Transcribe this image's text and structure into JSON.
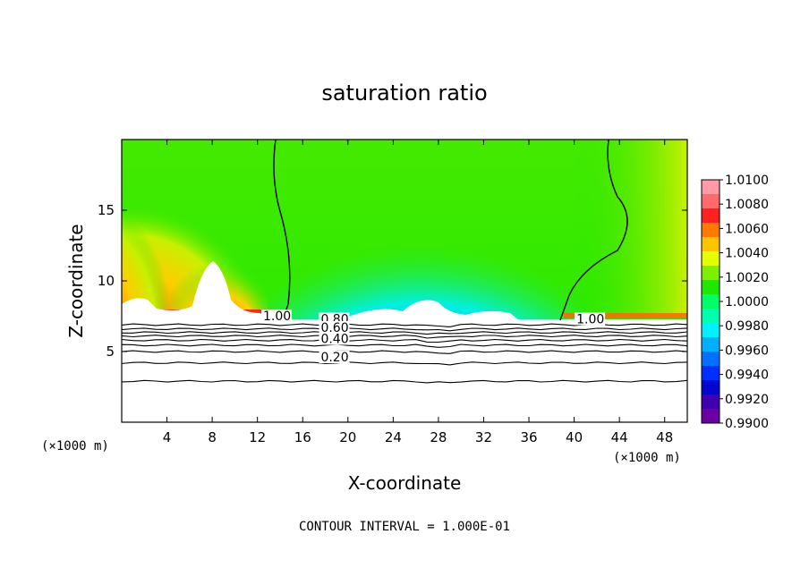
{
  "chart_data": {
    "type": "heatmap",
    "title": "saturation ratio",
    "xlabel": "X-coordinate",
    "ylabel": "Z-coordinate",
    "x_unit_left": "(×1000 m)",
    "x_unit_right": "(×1000 m)",
    "xlim": [
      0,
      50
    ],
    "ylim": [
      0,
      20
    ],
    "x_ticks": [
      "4",
      "8",
      "12",
      "16",
      "20",
      "24",
      "28",
      "32",
      "36",
      "40",
      "44",
      "48"
    ],
    "y_ticks": [
      "5",
      "10",
      "15"
    ],
    "note": "CONTOUR INTERVAL = 1.000E-01",
    "colorbar": {
      "labels": [
        "1.0100",
        "1.0080",
        "1.0060",
        "1.0040",
        "1.0020",
        "1.0000",
        "0.9980",
        "0.9960",
        "0.9940",
        "0.9920",
        "0.9900"
      ],
      "colors": [
        "#ff9aa6",
        "#ff6a6a",
        "#ff2020",
        "#ff7a00",
        "#ffc400",
        "#e6ff00",
        "#7cf000",
        "#1ee800",
        "#00ff66",
        "#00ffb0",
        "#00f0ff",
        "#00b0ff",
        "#0070ff",
        "#0030ff",
        "#0008d0",
        "#4000b0",
        "#6a00a0"
      ]
    },
    "contour_labels": [
      {
        "text": "1.00",
        "x": 12.5,
        "z": 7.2
      },
      {
        "text": "0.80",
        "x": 17.6,
        "z": 7.0
      },
      {
        "text": "0.60",
        "x": 17.6,
        "z": 6.4
      },
      {
        "text": "0.40",
        "x": 17.6,
        "z": 5.6
      },
      {
        "text": "0.20",
        "x": 17.6,
        "z": 4.3
      },
      {
        "text": "1.00",
        "x": 40.2,
        "z": 7.0
      }
    ],
    "contour_lines_below_cloud": [
      {
        "level": 0.9,
        "z": 6.9
      },
      {
        "level": 0.8,
        "z": 6.6
      },
      {
        "level": 0.7,
        "z": 6.35
      },
      {
        "level": 0.6,
        "z": 6.1
      },
      {
        "level": 0.5,
        "z": 5.8
      },
      {
        "level": 0.4,
        "z": 5.45
      },
      {
        "level": 0.3,
        "z": 5.0
      },
      {
        "level": 0.2,
        "z": 4.2
      },
      {
        "level": 0.1,
        "z": 2.9
      }
    ]
  }
}
